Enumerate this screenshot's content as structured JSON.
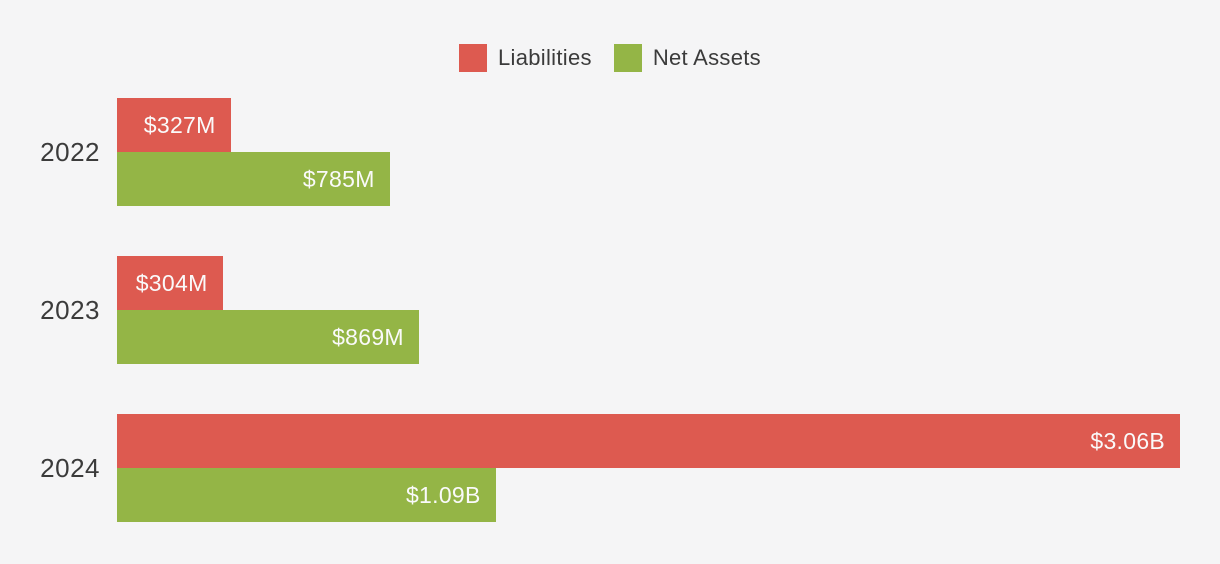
{
  "chart_data": {
    "type": "bar",
    "orientation": "horizontal",
    "categories": [
      "2022",
      "2023",
      "2024"
    ],
    "series": [
      {
        "name": "Liabilities",
        "color": "#DD5A50",
        "values_millions": [
          327,
          304,
          3060
        ],
        "labels": [
          "$327M",
          "$304M",
          "$3.06B"
        ]
      },
      {
        "name": "Net Assets",
        "color": "#94B546",
        "values_millions": [
          785,
          869,
          1090
        ],
        "labels": [
          "$785M",
          "$869M",
          "$1.09B"
        ]
      }
    ],
    "legend_position": "top-center",
    "xlim": [
      0,
      3175
    ],
    "grid": false,
    "value_labels_inside_bars": true,
    "background_color": "#F5F5F6",
    "bar_label_text_color": "#FAFAFA",
    "axis_text_color": "#3B3B3B"
  }
}
